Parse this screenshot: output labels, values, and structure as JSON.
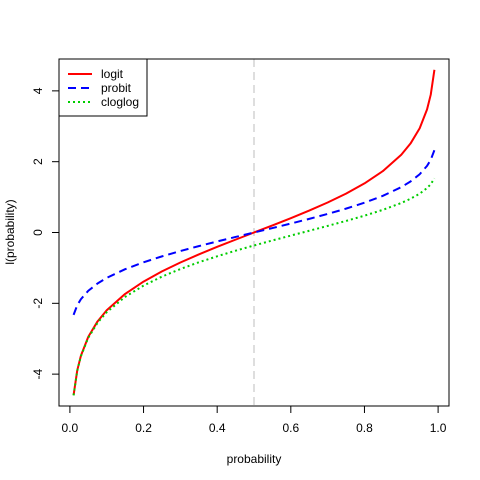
{
  "chart_data": {
    "type": "line",
    "title": "",
    "xlabel": "probability",
    "ylabel": "l(probability)",
    "xlim": [
      -0.0296,
      1.0296
    ],
    "ylim": [
      -4.9,
      4.9
    ],
    "x_ticks": [
      {
        "value": 0.0,
        "label": "0.0"
      },
      {
        "value": 0.2,
        "label": "0.2"
      },
      {
        "value": 0.4,
        "label": "0.4"
      },
      {
        "value": 0.6,
        "label": "0.6"
      },
      {
        "value": 0.8,
        "label": "0.8"
      },
      {
        "value": 1.0,
        "label": "1.0"
      }
    ],
    "y_ticks": [
      {
        "value": -4,
        "label": "-4"
      },
      {
        "value": -2,
        "label": "-2"
      },
      {
        "value": 0,
        "label": "0"
      },
      {
        "value": 2,
        "label": "2"
      },
      {
        "value": 4,
        "label": "4"
      }
    ],
    "reference_line": {
      "x": 0.5,
      "color": "#bebebe",
      "style": "dashed"
    },
    "x": [
      0.01,
      0.02,
      0.03,
      0.05,
      0.075,
      0.1,
      0.15,
      0.2,
      0.25,
      0.3,
      0.35,
      0.4,
      0.45,
      0.5,
      0.55,
      0.6,
      0.65,
      0.7,
      0.75,
      0.8,
      0.85,
      0.9,
      0.925,
      0.95,
      0.97,
      0.98,
      0.99
    ],
    "series": [
      {
        "name": "logit",
        "color": "#ff0000",
        "style": "solid",
        "values": [
          -4.595,
          -3.892,
          -3.476,
          -2.944,
          -2.512,
          -2.197,
          -1.735,
          -1.386,
          -1.099,
          -0.847,
          -0.619,
          -0.405,
          -0.201,
          0.0,
          0.201,
          0.405,
          0.619,
          0.847,
          1.099,
          1.386,
          1.735,
          2.197,
          2.512,
          2.944,
          3.476,
          3.892,
          4.595
        ]
      },
      {
        "name": "probit",
        "color": "#0000ff",
        "style": "dashed",
        "values": [
          -2.326,
          -2.054,
          -1.881,
          -1.645,
          -1.44,
          -1.282,
          -1.036,
          -0.842,
          -0.674,
          -0.524,
          -0.385,
          -0.253,
          -0.126,
          0.0,
          0.126,
          0.253,
          0.385,
          0.524,
          0.674,
          0.842,
          1.036,
          1.282,
          1.44,
          1.645,
          1.881,
          2.054,
          2.326
        ]
      },
      {
        "name": "cloglog",
        "color": "#00cd00",
        "style": "dotted",
        "values": [
          -4.6,
          -3.902,
          -3.491,
          -2.97,
          -2.55,
          -2.25,
          -1.817,
          -1.5,
          -1.246,
          -1.031,
          -0.842,
          -0.672,
          -0.514,
          -0.367,
          -0.225,
          -0.087,
          0.049,
          0.186,
          0.327,
          0.476,
          0.64,
          0.834,
          0.952,
          1.097,
          1.255,
          1.364,
          1.527
        ]
      }
    ],
    "legend": {
      "position": "top-left",
      "entries": [
        "logit",
        "probit",
        "cloglog"
      ]
    },
    "grid": false
  }
}
